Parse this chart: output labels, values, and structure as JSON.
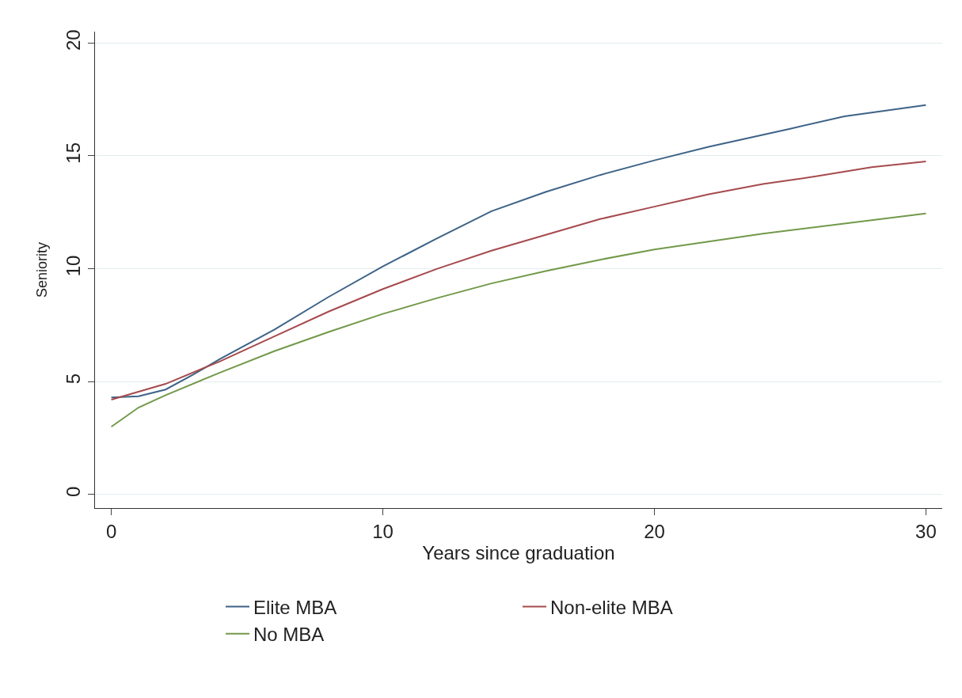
{
  "chart_data": {
    "type": "line",
    "xlabel": "Years since graduation",
    "ylabel": "Seniority",
    "xlim": [
      -0.6,
      30.6
    ],
    "ylim": [
      -0.6,
      20.5
    ],
    "xticks": [
      0,
      10,
      20,
      30
    ],
    "yticks": [
      0,
      5,
      10,
      15,
      20
    ],
    "grid": "y",
    "legend": "bottom",
    "line_style": "solid",
    "marker": "none",
    "series": [
      {
        "name": "Elite MBA",
        "color": "#3e6387",
        "x": [
          0,
          1,
          2,
          3,
          4,
          6,
          8,
          10,
          12,
          14,
          16,
          18,
          20,
          22,
          25,
          27,
          30
        ],
        "values": [
          4.3,
          4.35,
          4.65,
          5.3,
          6.0,
          7.3,
          8.75,
          10.1,
          11.35,
          12.55,
          13.4,
          14.15,
          14.8,
          15.4,
          16.2,
          16.75,
          17.25
        ]
      },
      {
        "name": "Non-elite MBA",
        "color": "#a64a4e",
        "x": [
          0,
          2,
          4,
          6,
          8,
          10,
          12,
          14,
          16,
          18,
          20,
          22,
          24,
          26,
          28,
          30
        ],
        "values": [
          4.2,
          4.9,
          5.9,
          7.0,
          8.1,
          9.1,
          10.0,
          10.8,
          11.5,
          12.2,
          12.75,
          13.3,
          13.75,
          14.1,
          14.5,
          14.75
        ]
      },
      {
        "name": "No MBA",
        "color": "#72994a",
        "x": [
          0,
          1,
          2,
          4,
          6,
          8,
          10,
          12,
          14,
          16,
          18,
          20,
          22,
          24,
          26,
          28,
          30
        ],
        "values": [
          3.0,
          3.85,
          4.4,
          5.4,
          6.35,
          7.2,
          8.0,
          8.7,
          9.35,
          9.9,
          10.4,
          10.85,
          11.2,
          11.55,
          11.85,
          12.15,
          12.45
        ]
      }
    ]
  }
}
